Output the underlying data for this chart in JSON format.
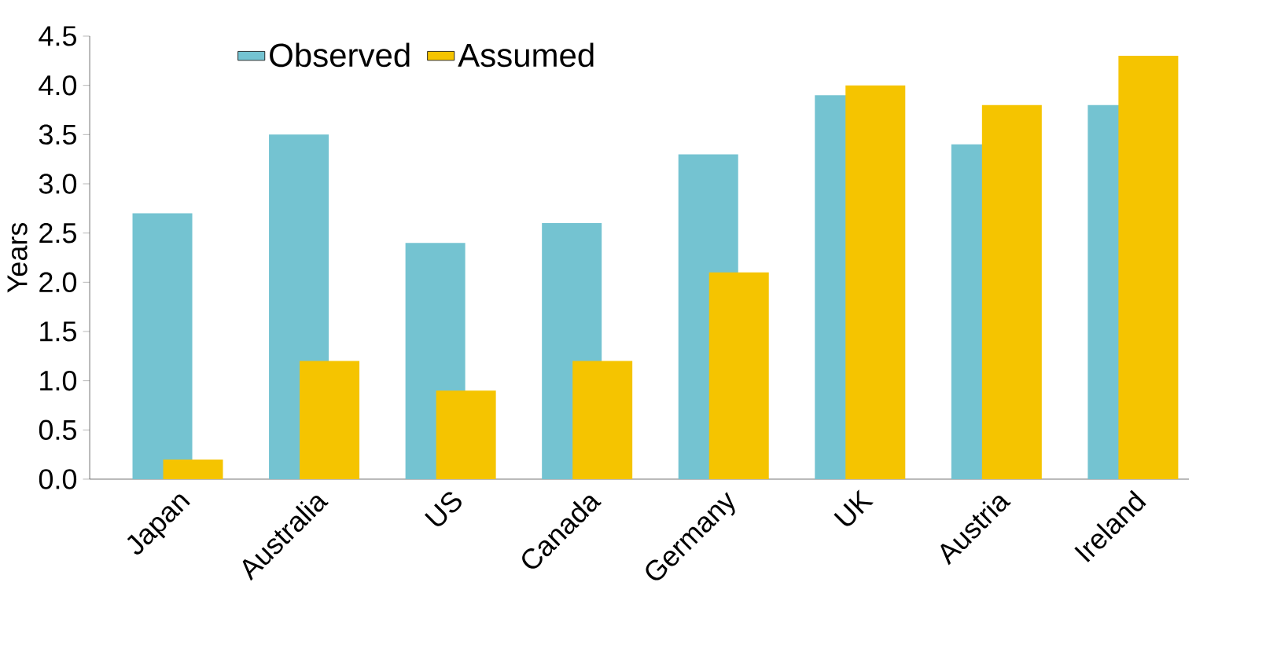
{
  "chart_data": {
    "type": "bar",
    "ylabel": "Years",
    "categories": [
      "Japan",
      "Australia",
      "US",
      "Canada",
      "Germany",
      "UK",
      "Austria",
      "Ireland"
    ],
    "series": [
      {
        "name": "Observed",
        "color": "#74c3d1",
        "values": [
          2.7,
          3.5,
          2.4,
          2.6,
          3.3,
          3.9,
          3.4,
          3.8
        ]
      },
      {
        "name": "Assumed",
        "color": "#f5c400",
        "values": [
          0.2,
          1.2,
          0.9,
          1.2,
          2.1,
          4.0,
          3.8,
          4.3
        ]
      }
    ],
    "ylim": [
      0,
      4.5
    ],
    "yticks": [
      {
        "value": 0,
        "label": "0.0"
      },
      0.5,
      {
        "value": 1,
        "label": "1.0"
      },
      1.5,
      {
        "value": 2,
        "label": "2.0"
      },
      2.5,
      {
        "value": 3,
        "label": "3.0"
      },
      3.5,
      {
        "value": 4,
        "label": "4.0"
      },
      4.5
    ],
    "legend": "top left",
    "grid": false
  }
}
